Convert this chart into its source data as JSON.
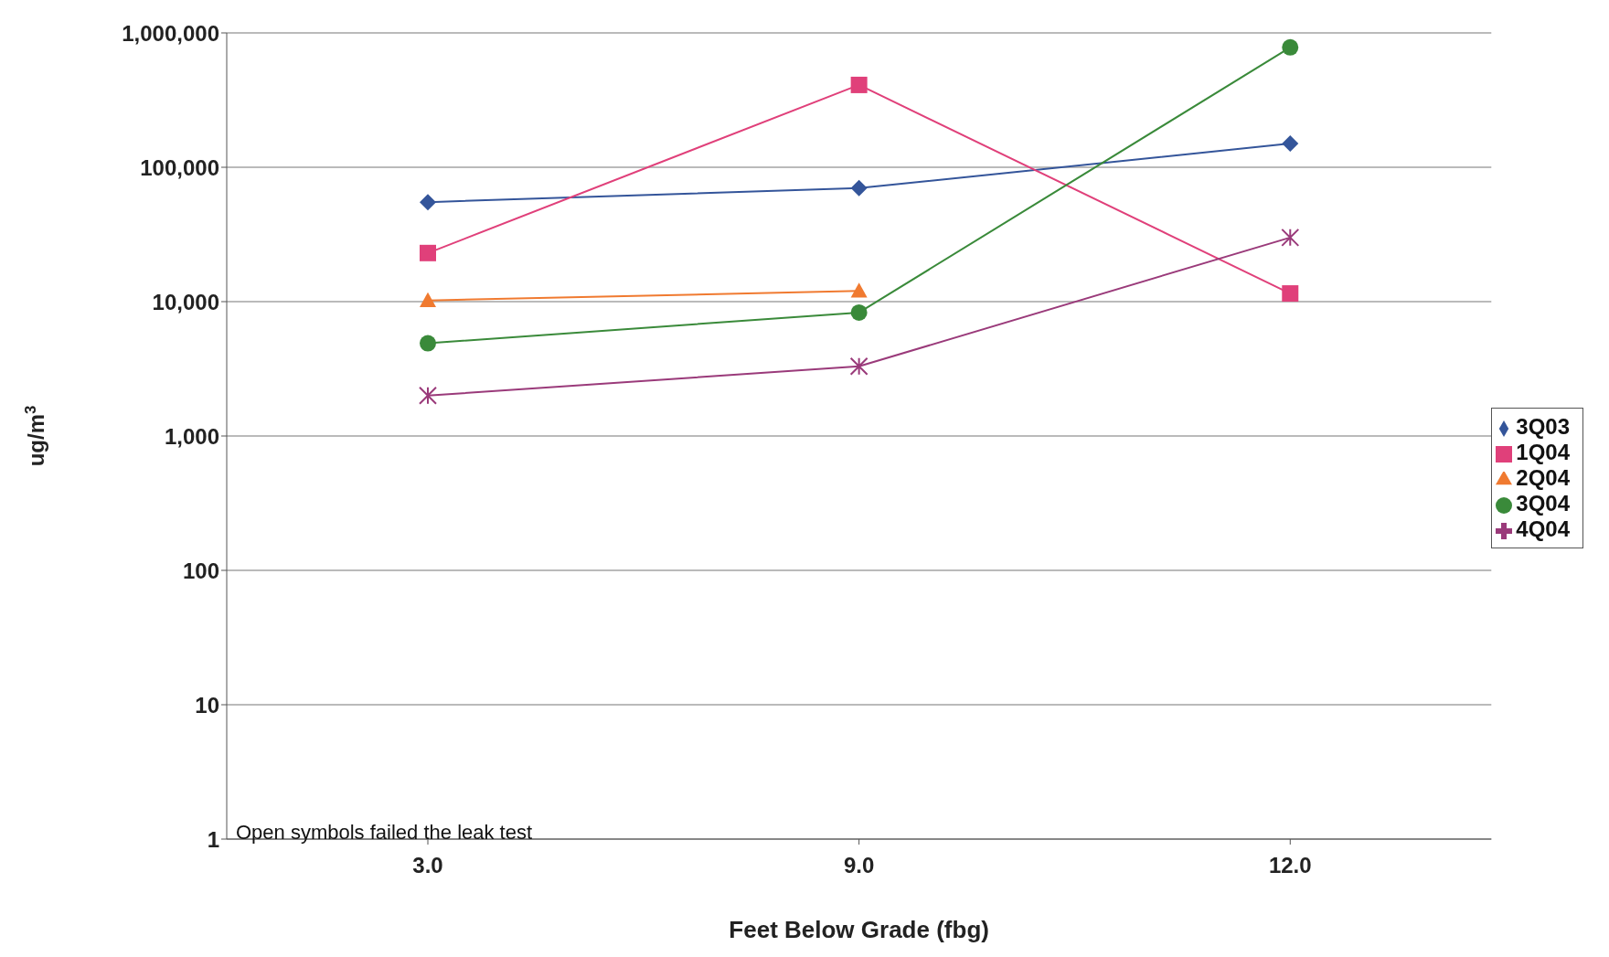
{
  "chart_data": {
    "type": "line",
    "xlabel": "Feet Below Grade (fbg)",
    "ylabel": "ug/m$^{3}$",
    "categories": [
      "3.0",
      "9.0",
      "12.0"
    ],
    "series": [
      {
        "name": "3Q03",
        "color": "#34559a",
        "marker": "diamond",
        "values": [
          55000,
          70000,
          150000
        ]
      },
      {
        "name": "1Q04",
        "color": "#e0407a",
        "marker": "square",
        "values": [
          23000,
          410000,
          11500
        ]
      },
      {
        "name": "2Q04",
        "color": "#f07a30",
        "marker": "triangle",
        "values": [
          10200,
          12000,
          null
        ]
      },
      {
        "name": "3Q04",
        "color": "#3a8a3a",
        "marker": "circle",
        "values": [
          4900,
          8300,
          780000
        ]
      },
      {
        "name": "4Q04",
        "color": "#9a3a7a",
        "marker": "cross",
        "values": [
          2000,
          3300,
          30000
        ]
      }
    ],
    "log": "y",
    "ylim": [
      1,
      1000000
    ],
    "yticks": [
      1,
      10,
      100,
      {
        "value": 1000,
        "label": "1,000"
      },
      {
        "value": 10000,
        "label": "10,000"
      },
      {
        "value": 100000,
        "label": "100,000"
      },
      {
        "value": 1000000,
        "label": "1,000,000"
      }
    ],
    "grid": "y",
    "legend": "right",
    "annotations": [
      "Open symbols failed the leak test"
    ]
  }
}
